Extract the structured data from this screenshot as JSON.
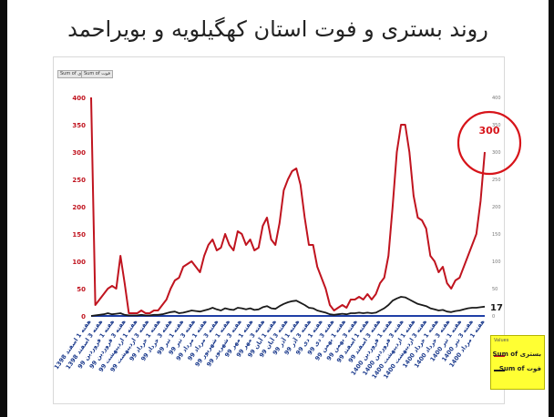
{
  "title": "روند بستری و فوت استان کهگیلویه و بویراحمد",
  "toolbar": {
    "pill_1": "Sum of بستری",
    "pill_2": "Sum of فوت"
  },
  "colors": {
    "admissions": "#c0141f",
    "deaths": "#1a1a1a",
    "zero_line": "#1f3fa6",
    "highlight": "#d7141a",
    "legend_bg": "#ffff33"
  },
  "legend": {
    "title": "Values",
    "items": [
      {
        "label": "بستری Sum of",
        "color": "#c0141f"
      },
      {
        "label": "فوت Sum of",
        "color": "#1a1a1a"
      }
    ]
  },
  "chart_data": {
    "type": "line",
    "ylim_left": [
      0,
      400
    ],
    "yticks_left": [
      0,
      50,
      100,
      150,
      200,
      250,
      300,
      350,
      400
    ],
    "ylim_right": [
      0,
      400
    ],
    "yticks_right": [
      0,
      50,
      100,
      150,
      200,
      250,
      300,
      350,
      400
    ],
    "x_tick_labels": [
      "هفته 1 اسفند 1398",
      "هفته 3 اسفند 1398",
      "هفته 1 فروردین 99",
      "هفته 3 فروردین 99",
      "هفته 1 اردیبهشت 99",
      "هفته 3 اردیبهشت 99",
      "هفته 1 خرداد 99",
      "هفته 3 خرداد 99",
      "هفته 1 تیر 99",
      "هفته 3 تیر 99",
      "هفته 1 مرداد 99",
      "هفته 3 مرداد 99",
      "هفته 1 شهریور 99",
      "هفته 3 شهریور 99",
      "هفته 1 مهر 99",
      "هفته 3 مهر 99",
      "هفته 1 آبان 99",
      "هفته 3 آبان 99",
      "هفته 1 آذر 99",
      "هفته 3 آذر 99",
      "هفته 1 دی 99",
      "هفته 3 دی 99",
      "هفته 1 بهمن 99",
      "هفته 3 بهمن 99",
      "هفته 1 اسفند 99",
      "هفته 3 اسفند 99",
      "هفته 1 فروردین 1400",
      "هفته 3 فروردین 1400",
      "هفته 1 اردیبهشت 1400",
      "هفته 3 اردیبهشت 1400",
      "هفته 1 خرداد 1400",
      "هفته 3 خرداد 1400",
      "هفته 1 تیر 1400",
      "هفته 3 تیر 1400",
      "هفته 1 مرداد 1400"
    ],
    "series": [
      {
        "key": "admissions",
        "values": [
          400,
          20,
          30,
          40,
          50,
          55,
          50,
          110,
          60,
          5,
          5,
          5,
          10,
          5,
          5,
          10,
          10,
          20,
          30,
          50,
          65,
          70,
          90,
          95,
          100,
          90,
          80,
          110,
          130,
          140,
          120,
          125,
          150,
          130,
          120,
          155,
          150,
          130,
          140,
          120,
          125,
          165,
          180,
          140,
          130,
          170,
          230,
          250,
          265,
          270,
          240,
          180,
          130,
          130,
          90,
          70,
          50,
          20,
          10,
          15,
          20,
          15,
          30,
          30,
          35,
          30,
          40,
          30,
          40,
          60,
          70,
          110,
          200,
          300,
          350,
          350,
          300,
          220,
          180,
          175,
          160,
          110,
          100,
          80,
          90,
          60,
          50,
          65,
          70,
          90,
          110,
          130,
          150,
          210,
          300
        ]
      },
      {
        "key": "deaths",
        "values": [
          0,
          1,
          2,
          3,
          5,
          3,
          4,
          5,
          2,
          1,
          1,
          1,
          2,
          1,
          1,
          2,
          2,
          3,
          5,
          7,
          8,
          5,
          6,
          8,
          10,
          9,
          8,
          10,
          12,
          15,
          12,
          10,
          14,
          12,
          11,
          15,
          14,
          12,
          14,
          11,
          12,
          16,
          18,
          14,
          13,
          18,
          22,
          25,
          27,
          28,
          24,
          20,
          15,
          14,
          10,
          8,
          6,
          3,
          2,
          3,
          4,
          3,
          5,
          5,
          6,
          5,
          6,
          5,
          6,
          10,
          14,
          20,
          28,
          32,
          35,
          34,
          30,
          26,
          22,
          20,
          18,
          14,
          12,
          10,
          11,
          8,
          7,
          9,
          10,
          12,
          14,
          15,
          15,
          16,
          17
        ]
      }
    ],
    "annotations": [
      {
        "value": "300",
        "color": "#d7141a"
      },
      {
        "value": "17",
        "color": "#1a1a1a"
      }
    ]
  }
}
